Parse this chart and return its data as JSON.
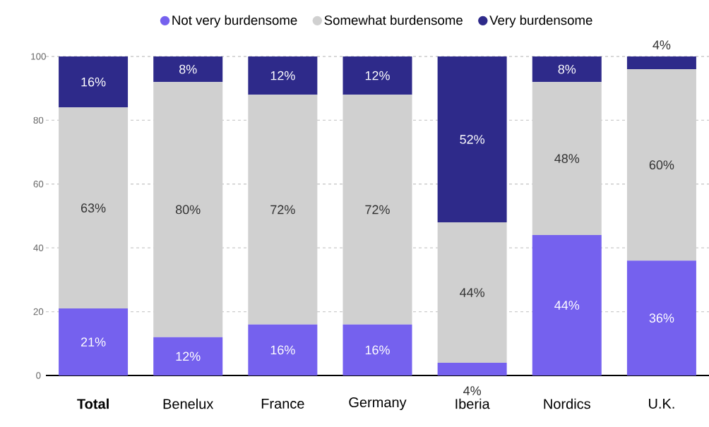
{
  "chart_data": {
    "type": "bar",
    "stacked": true,
    "categories": [
      "**Total**",
      "Benelux",
      "France",
      "Germany",
      "Iberia",
      "Nordics",
      "U.K."
    ],
    "series": [
      {
        "name": "Not very burdensome",
        "color": "#7561ee",
        "values": [
          21,
          12,
          16,
          16,
          4,
          44,
          36
        ],
        "value_labels": [
          "21%",
          "12%",
          "16%",
          "16%",
          "4%",
          "44%",
          "36%"
        ]
      },
      {
        "name": "Somewhat burdensome",
        "color": "#d0d0d0",
        "values": [
          63,
          80,
          72,
          72,
          44,
          48,
          60
        ],
        "value_labels": [
          "63%",
          "80%",
          "72%",
          "72%",
          "44%",
          "48%",
          "60%"
        ]
      },
      {
        "name": "Very burdensome",
        "color": "#2e2a8a",
        "values": [
          16,
          8,
          12,
          12,
          52,
          8,
          4
        ],
        "value_labels": [
          "16%",
          "8%",
          "12%",
          "12%",
          "52%",
          "8%",
          "4%"
        ]
      }
    ],
    "ylim": [
      0,
      100
    ],
    "yticks": [
      0,
      20,
      40,
      60,
      80,
      100
    ],
    "grid": "y",
    "legend": "top"
  }
}
